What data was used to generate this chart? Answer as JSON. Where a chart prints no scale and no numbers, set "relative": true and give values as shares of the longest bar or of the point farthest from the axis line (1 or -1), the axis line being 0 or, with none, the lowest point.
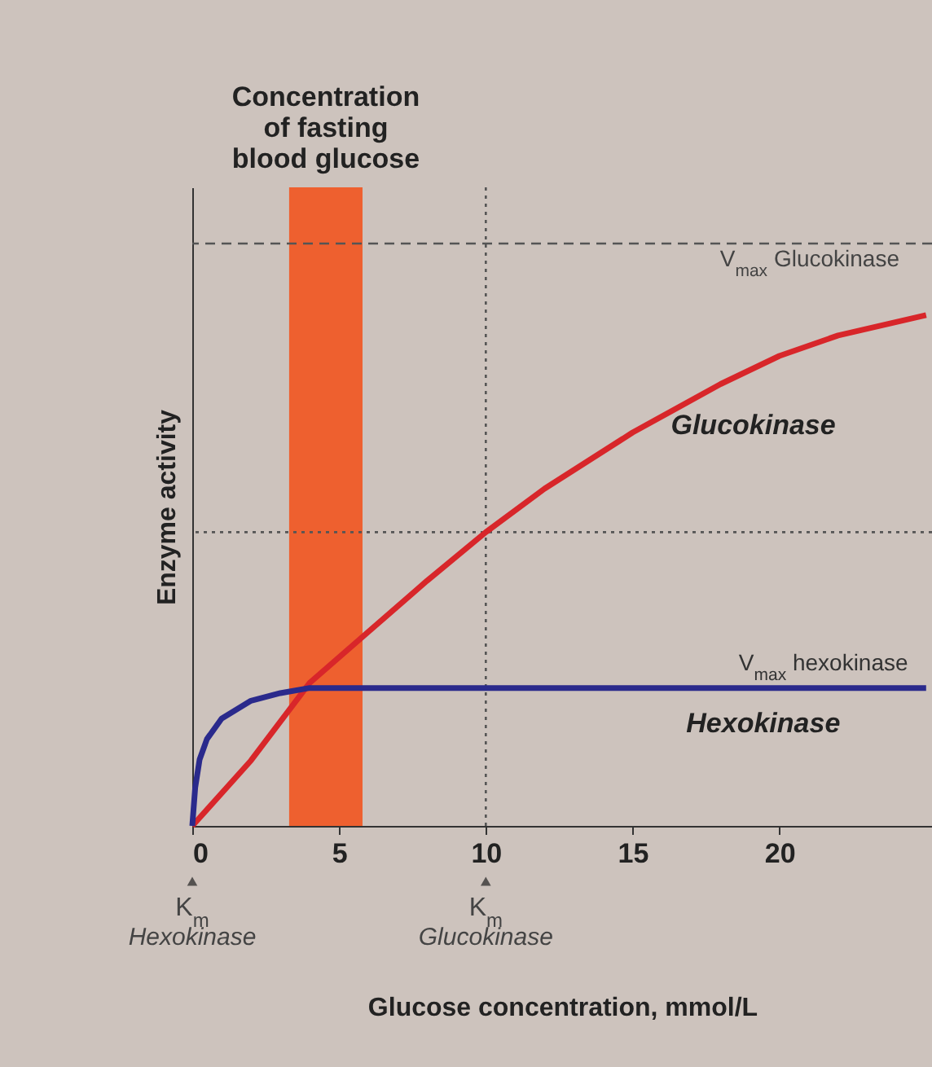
{
  "chart_data": {
    "type": "line",
    "relative": true,
    "xlabel": "Glucose concentration, mmol/L",
    "ylabel": "Enzyme activity",
    "xlim": [
      0,
      25.2
    ],
    "xticks": [
      0,
      5,
      10,
      15,
      20
    ],
    "grid": false,
    "legend": false,
    "line_style": "solid",
    "marker": "none",
    "series": [
      {
        "name": "Glucokinase",
        "color": "#d8262a",
        "x": [
          0,
          2,
          4,
          6,
          8,
          10,
          12,
          15,
          18,
          20,
          22,
          25
        ],
        "values": [
          0,
          0.128,
          0.28,
          0.38,
          0.48,
          0.575,
          0.66,
          0.77,
          0.865,
          0.92,
          0.96,
          1
        ]
      },
      {
        "name": "Hexokinase",
        "color": "#2a2a8c",
        "x": [
          0,
          0.1,
          0.25,
          0.5,
          1,
          2,
          3,
          4,
          25
        ],
        "values": [
          0,
          0.075,
          0.13,
          0.17,
          0.21,
          0.245,
          0.26,
          0.27,
          0.27
        ]
      }
    ],
    "ref_lines": [
      {
        "axis": "y",
        "value": 1.14,
        "label": "V$_{max}$ Glucokinase",
        "line_style": "dashed",
        "color": "#555555"
      },
      {
        "axis": "y",
        "value": 0.575,
        "label": null,
        "line_style": "dotted",
        "color": "#555555"
      },
      {
        "axis": "x",
        "value": 10,
        "label": null,
        "line_style": "dotted",
        "color": "#555555"
      }
    ],
    "bands": [
      {
        "axis": "x",
        "from": 3.3,
        "to": 5.8,
        "label": "Concentration\nof fasting\nblood glucose",
        "color": "#f2551f"
      }
    ],
    "annotations": [
      {
        "text": "V$_{max}$ hexokinase",
        "x": 21.5,
        "y": 0.27
      },
      {
        "text": "K$_{m}$ Hexokinase",
        "x": 0,
        "y": 0
      },
      {
        "text": "K$_{m}$ Glucokinase",
        "x": 10,
        "y": 0
      }
    ]
  }
}
